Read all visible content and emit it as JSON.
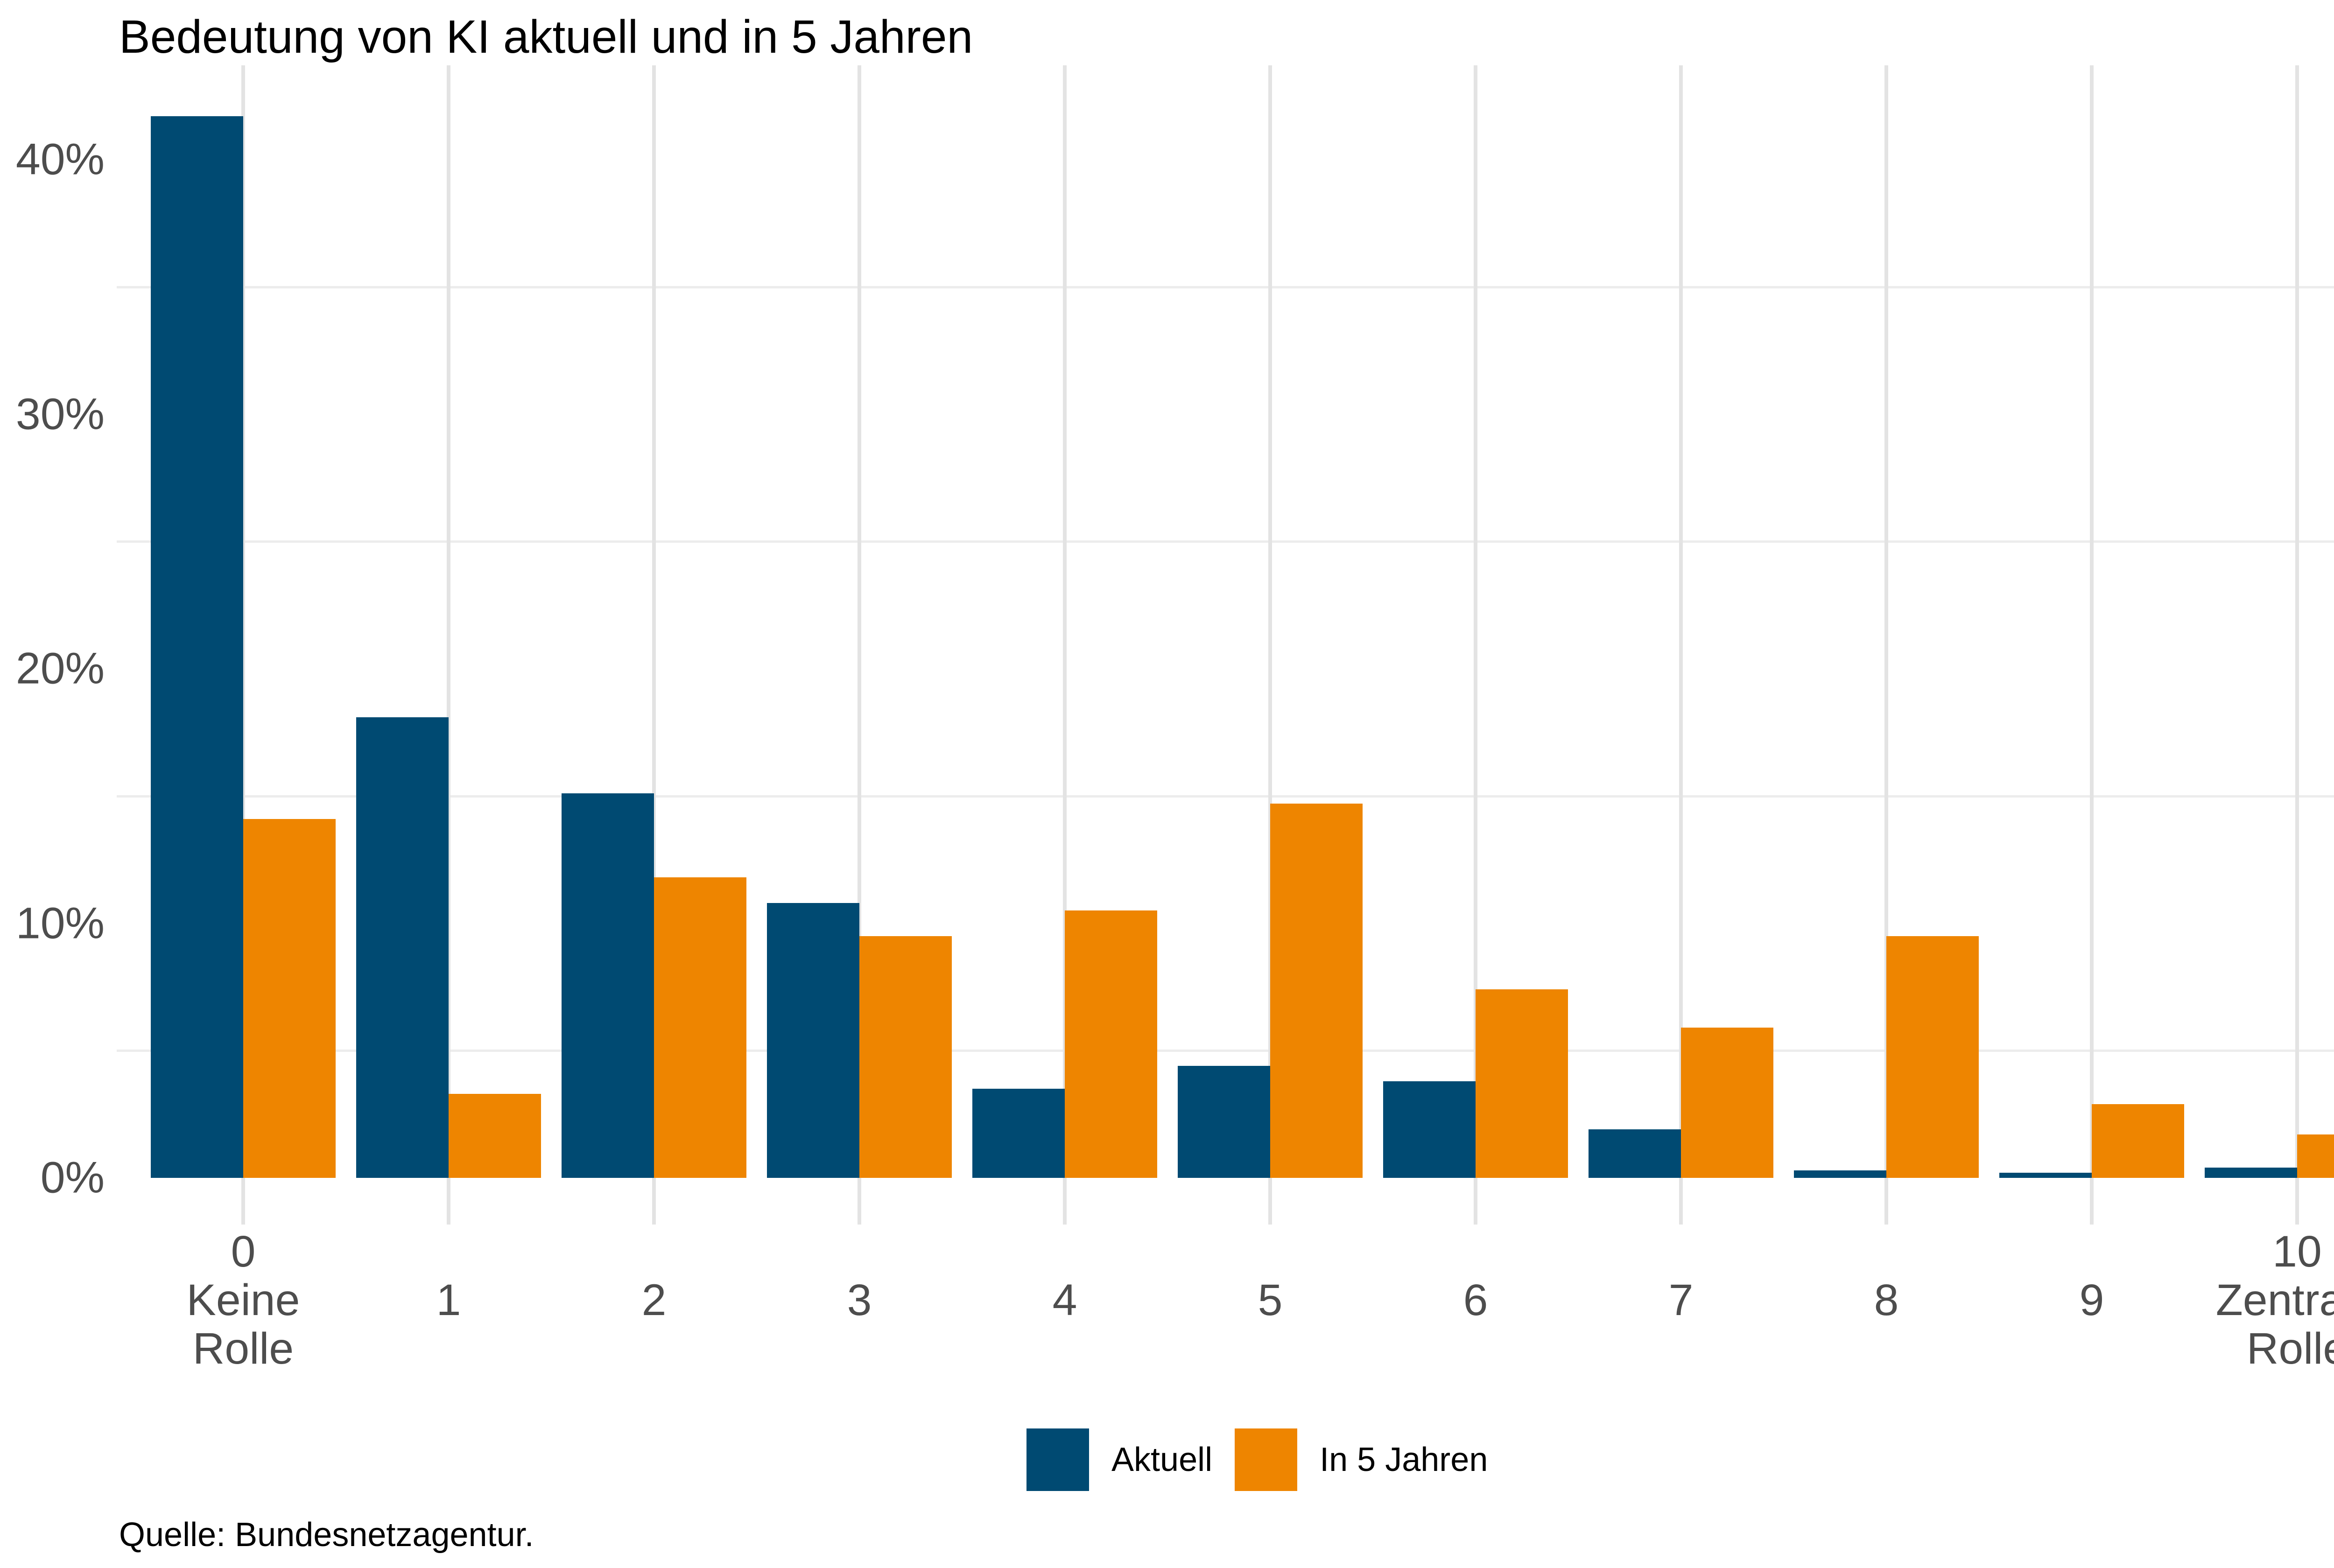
{
  "chart_data": {
    "type": "bar",
    "title": "Bedeutung von KI aktuell und in 5 Jahren",
    "categories": [
      "0",
      "1",
      "2",
      "3",
      "4",
      "5",
      "6",
      "7",
      "8",
      "9",
      "10"
    ],
    "category_sublabels": {
      "0": [
        "Keine",
        "Rolle"
      ],
      "10": [
        "Zentrale",
        "Rolle"
      ]
    },
    "series": [
      {
        "name": "Aktuell",
        "color": "#004a72",
        "values": [
          41.7,
          18.1,
          15.1,
          10.8,
          3.5,
          4.4,
          3.8,
          1.9,
          0.3,
          0.2,
          0.4
        ]
      },
      {
        "name": "In 5 Jahren",
        "color": "#ee8500",
        "values": [
          14.1,
          3.3,
          11.8,
          9.5,
          10.5,
          14.7,
          7.4,
          5.9,
          9.5,
          2.9,
          1.7
        ]
      }
    ],
    "xlabel": "",
    "ylabel": "",
    "y_tick_labels": [
      "0%",
      "10%",
      "20%",
      "30%",
      "40%"
    ],
    "ylim": [
      0,
      43.6
    ],
    "grid": {
      "minor_y_percent": [
        5,
        15,
        25,
        35
      ],
      "vertical_at_each_category": true
    },
    "legend_position": "bottom-center"
  },
  "source": {
    "text": "Quelle: Bundesnetzagentur."
  },
  "colors": {
    "axis_text": "#4d4d4d",
    "gridline": "#ececec",
    "background": "#ffffff"
  }
}
